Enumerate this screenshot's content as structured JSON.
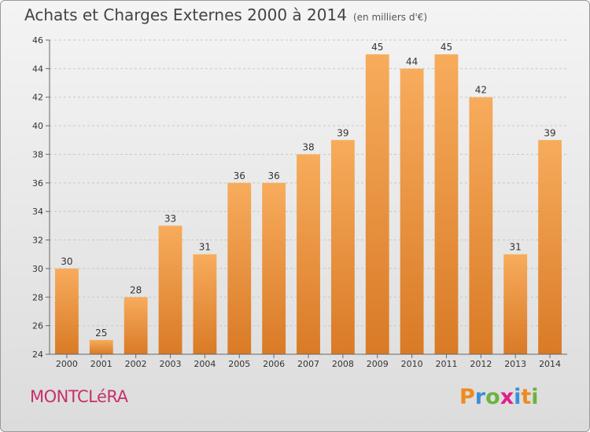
{
  "header": {
    "title": "Achats et Charges Externes 2000 à 2014",
    "subtitle": "(en milliers d'€)"
  },
  "footer": {
    "commune": "MONTCLéRA",
    "logo_text": "Proxiti",
    "logo_colors": [
      "#f08a1e",
      "#3a8fd8",
      "#6cb33f",
      "#e0208a",
      "#3a8fd8",
      "#f08a1e",
      "#6cb33f"
    ]
  },
  "chart_data": {
    "type": "bar",
    "title": "Achats et Charges Externes 2000 à 2014",
    "subtitle": "(en milliers d'€)",
    "categories": [
      "2000",
      "2001",
      "2002",
      "2003",
      "2004",
      "2005",
      "2006",
      "2007",
      "2008",
      "2009",
      "2010",
      "2011",
      "2012",
      "2013",
      "2014"
    ],
    "values": [
      30,
      25,
      28,
      33,
      31,
      36,
      36,
      38,
      39,
      45,
      44,
      45,
      42,
      31,
      39
    ],
    "ylim": [
      24,
      46
    ],
    "yticks": [
      24,
      26,
      28,
      30,
      32,
      34,
      36,
      38,
      40,
      42,
      44,
      46
    ],
    "grid": true,
    "bar_color": "#f39a43",
    "bar_color_dark": "#d97a26"
  }
}
